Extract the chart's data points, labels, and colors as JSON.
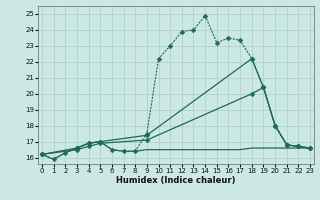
{
  "xlabel": "Humidex (Indice chaleur)",
  "background_color": "#cce8e2",
  "grid_color": "#a8cfc8",
  "line_color": "#1a6b5a",
  "xlim": [
    -0.3,
    23.3
  ],
  "ylim": [
    15.6,
    25.5
  ],
  "yticks": [
    16,
    17,
    18,
    19,
    20,
    21,
    22,
    23,
    24,
    25
  ],
  "xticks": [
    0,
    1,
    2,
    3,
    4,
    5,
    6,
    7,
    8,
    9,
    10,
    11,
    12,
    13,
    14,
    15,
    16,
    17,
    18,
    19,
    20,
    21,
    22,
    23
  ],
  "s1_x": [
    0,
    1,
    2,
    3,
    4,
    5,
    6,
    7,
    8,
    9,
    10,
    11,
    12,
    13,
    14,
    15,
    16,
    17,
    18,
    19,
    20,
    21,
    22,
    23
  ],
  "s1_y": [
    16.2,
    15.9,
    16.3,
    16.6,
    16.9,
    17.0,
    16.5,
    16.4,
    16.4,
    17.5,
    22.2,
    23.0,
    23.9,
    24.0,
    24.9,
    23.2,
    23.5,
    23.35,
    22.2,
    20.4,
    18.0,
    16.8,
    16.7,
    16.6
  ],
  "s2_x": [
    0,
    3,
    4,
    5,
    9,
    18,
    19,
    20,
    21,
    22,
    23
  ],
  "s2_y": [
    16.2,
    16.6,
    16.9,
    17.0,
    17.4,
    22.2,
    20.4,
    18.0,
    16.8,
    16.7,
    16.6
  ],
  "s3_x": [
    0,
    3,
    4,
    5,
    9,
    18,
    19,
    20,
    21,
    22,
    23
  ],
  "s3_y": [
    16.2,
    16.5,
    16.7,
    16.9,
    17.1,
    20.0,
    20.4,
    18.0,
    16.8,
    16.7,
    16.6
  ],
  "s4_x": [
    0,
    1,
    2,
    3,
    4,
    5,
    6,
    7,
    8,
    9,
    10,
    11,
    12,
    13,
    14,
    15,
    16,
    17,
    18,
    19,
    20,
    21,
    22,
    23
  ],
  "s4_y": [
    16.2,
    15.9,
    16.3,
    16.6,
    16.9,
    17.0,
    16.5,
    16.4,
    16.4,
    16.5,
    16.5,
    16.5,
    16.5,
    16.5,
    16.5,
    16.5,
    16.5,
    16.5,
    16.6,
    16.6,
    16.6,
    16.6,
    16.6,
    16.6
  ]
}
